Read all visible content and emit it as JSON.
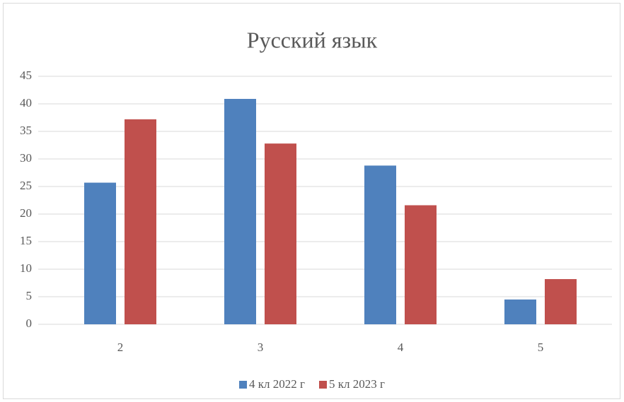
{
  "chart_data": {
    "type": "bar",
    "title": "Русский язык",
    "categories": [
      "2",
      "3",
      "4",
      "5"
    ],
    "series": [
      {
        "name": "4 кл 2022 г",
        "color": "#4f81bd",
        "values": [
          25.7,
          40.9,
          28.8,
          4.5
        ]
      },
      {
        "name": "5 кл 2023 г",
        "color": "#c0504d",
        "values": [
          37.2,
          32.8,
          21.6,
          8.2
        ]
      }
    ],
    "ylim": [
      0,
      45
    ],
    "yticks": [
      0,
      5,
      10,
      15,
      20,
      25,
      30,
      35,
      40,
      45
    ],
    "grid": true,
    "legend": "bottom"
  }
}
